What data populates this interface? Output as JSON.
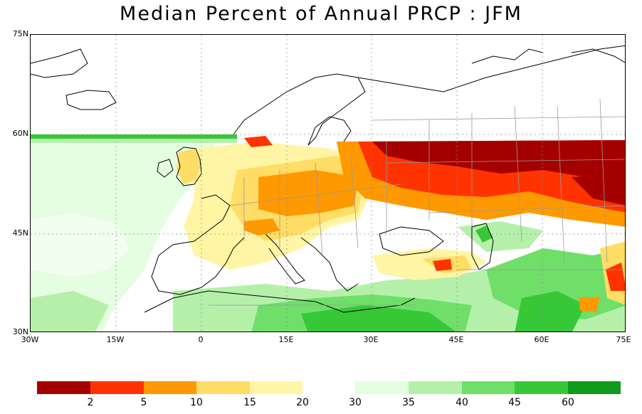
{
  "title": "Median Percent of Annual PRCP  :  JFM",
  "axes": {
    "y_ticks": [
      "75N",
      "60N",
      "45N",
      "30N"
    ],
    "x_ticks": [
      "30W",
      "15W",
      "0",
      "15E",
      "30E",
      "45E",
      "60E",
      "75E"
    ]
  },
  "colorbar": {
    "dry": {
      "colors": [
        "#a50000",
        "#ff3300",
        "#ff9900",
        "#ffdd66",
        "#fff5a5"
      ],
      "labels": [
        "2",
        "5",
        "10",
        "15",
        "20"
      ]
    },
    "wet": {
      "colors": [
        "#e5fde0",
        "#b5f0aa",
        "#6fdf6a",
        "#37c837",
        "#119a19"
      ],
      "labels": [
        "30",
        "35",
        "40",
        "45",
        "60"
      ]
    }
  }
}
